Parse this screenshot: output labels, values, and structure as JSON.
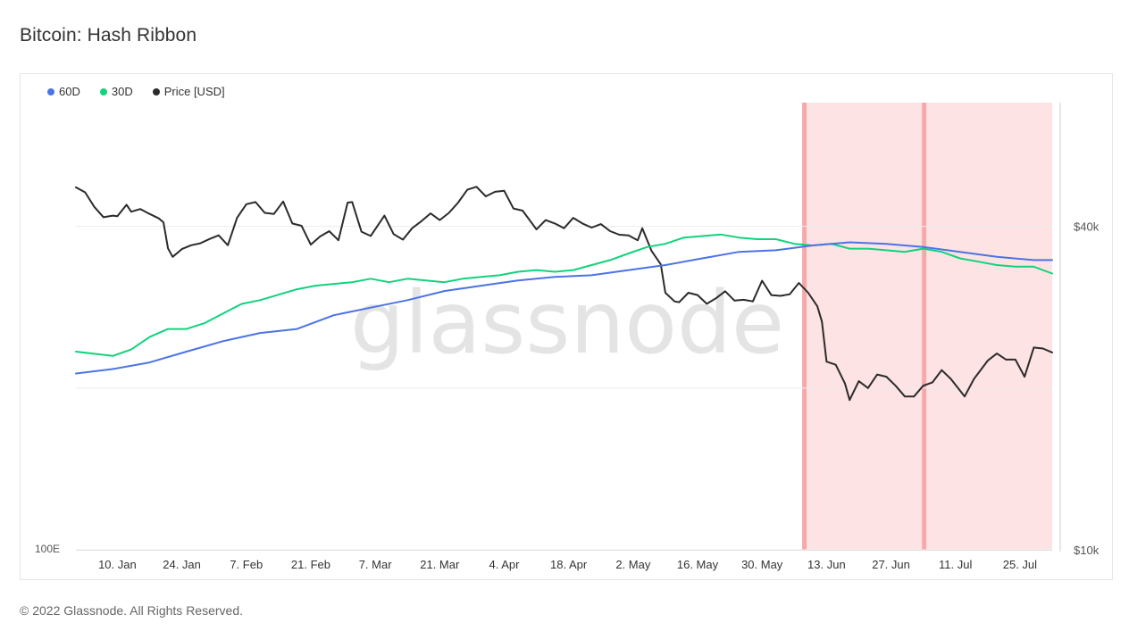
{
  "page": {
    "title": "Bitcoin: Hash Ribbon",
    "watermark": "glassnode",
    "footer": "© 2022 Glassnode. All Rights Reserved."
  },
  "colors": {
    "series_60d": "#4b73e5",
    "series_30d": "#10d37c",
    "series_price": "#2b2b2b",
    "capitulation_band": "#fde3e4",
    "capitulation_edge": "#f6a9ab"
  },
  "chart_data": {
    "type": "line",
    "legend": [
      {
        "name": "60D",
        "color": "#4b73e5"
      },
      {
        "name": "30D",
        "color": "#10d37c"
      },
      {
        "name": "Price [USD]",
        "color": "#2b2b2b"
      }
    ],
    "x_range": [
      "2022-01-01",
      "2022-08-01"
    ],
    "x_ticks": [
      "10. Jan",
      "24. Jan",
      "7. Feb",
      "21. Feb",
      "7. Mar",
      "21. Mar",
      "4. Apr",
      "18. Apr",
      "2. May",
      "16. May",
      "30. May",
      "13. Jun",
      "27. Jun",
      "11. Jul",
      "25. Jul"
    ],
    "x_tick_dates": [
      "2022-01-10",
      "2022-01-24",
      "2022-02-07",
      "2022-02-21",
      "2022-03-07",
      "2022-03-21",
      "2022-04-04",
      "2022-04-18",
      "2022-05-02",
      "2022-05-16",
      "2022-05-30",
      "2022-06-13",
      "2022-06-27",
      "2022-07-11",
      "2022-07-25"
    ],
    "left_axis": {
      "label": "100E",
      "scale": "log"
    },
    "right_axis": {
      "scale": "log",
      "range": [
        10000,
        68000
      ],
      "ticks": [
        {
          "label": "$10k",
          "value": 10000
        },
        {
          "label": "$40k",
          "value": 40000
        }
      ]
    },
    "grid": true,
    "legend_position": "top-left",
    "capitulation_periods": [
      [
        "2022-06-08",
        "2022-07-04"
      ],
      [
        "2022-07-04",
        "2022-08-01"
      ]
    ],
    "series": [
      {
        "name": "Price [USD]",
        "axis": "right",
        "points": [
          [
            "2022-01-01",
            47300
          ],
          [
            "2022-01-03",
            46300
          ],
          [
            "2022-01-05",
            43500
          ],
          [
            "2022-01-07",
            41600
          ],
          [
            "2022-01-09",
            41900
          ],
          [
            "2022-01-10",
            41800
          ],
          [
            "2022-01-12",
            43900
          ],
          [
            "2022-01-13",
            42600
          ],
          [
            "2022-01-15",
            43100
          ],
          [
            "2022-01-17",
            42200
          ],
          [
            "2022-01-19",
            41400
          ],
          [
            "2022-01-20",
            40700
          ],
          [
            "2022-01-21",
            36400
          ],
          [
            "2022-01-22",
            35100
          ],
          [
            "2022-01-24",
            36300
          ],
          [
            "2022-01-26",
            36900
          ],
          [
            "2022-01-28",
            37200
          ],
          [
            "2022-01-30",
            37900
          ],
          [
            "2022-02-01",
            38500
          ],
          [
            "2022-02-03",
            36900
          ],
          [
            "2022-02-05",
            41500
          ],
          [
            "2022-02-07",
            44000
          ],
          [
            "2022-02-09",
            44400
          ],
          [
            "2022-02-11",
            42400
          ],
          [
            "2022-02-13",
            42200
          ],
          [
            "2022-02-15",
            44500
          ],
          [
            "2022-02-17",
            40500
          ],
          [
            "2022-02-19",
            40100
          ],
          [
            "2022-02-21",
            37000
          ],
          [
            "2022-02-23",
            38300
          ],
          [
            "2022-02-25",
            39200
          ],
          [
            "2022-02-27",
            37700
          ],
          [
            "2022-03-01",
            44300
          ],
          [
            "2022-03-02",
            44400
          ],
          [
            "2022-03-04",
            39100
          ],
          [
            "2022-03-06",
            38400
          ],
          [
            "2022-03-09",
            41900
          ],
          [
            "2022-03-11",
            38700
          ],
          [
            "2022-03-13",
            37800
          ],
          [
            "2022-03-15",
            39700
          ],
          [
            "2022-03-17",
            40900
          ],
          [
            "2022-03-19",
            42300
          ],
          [
            "2022-03-21",
            41100
          ],
          [
            "2022-03-23",
            42400
          ],
          [
            "2022-03-25",
            44300
          ],
          [
            "2022-03-27",
            46800
          ],
          [
            "2022-03-29",
            47400
          ],
          [
            "2022-03-31",
            45500
          ],
          [
            "2022-04-02",
            46400
          ],
          [
            "2022-04-04",
            46600
          ],
          [
            "2022-04-06",
            43200
          ],
          [
            "2022-04-08",
            42800
          ],
          [
            "2022-04-11",
            39500
          ],
          [
            "2022-04-13",
            41100
          ],
          [
            "2022-04-15",
            40500
          ],
          [
            "2022-04-17",
            39700
          ],
          [
            "2022-04-19",
            41500
          ],
          [
            "2022-04-21",
            40500
          ],
          [
            "2022-04-23",
            39800
          ],
          [
            "2022-04-25",
            40400
          ],
          [
            "2022-04-27",
            39200
          ],
          [
            "2022-04-29",
            38600
          ],
          [
            "2022-05-01",
            38500
          ],
          [
            "2022-05-03",
            37700
          ],
          [
            "2022-05-04",
            39700
          ],
          [
            "2022-05-06",
            36000
          ],
          [
            "2022-05-08",
            34000
          ],
          [
            "2022-05-09",
            30100
          ],
          [
            "2022-05-11",
            29000
          ],
          [
            "2022-05-12",
            28900
          ],
          [
            "2022-05-14",
            30100
          ],
          [
            "2022-05-16",
            29800
          ],
          [
            "2022-05-18",
            28700
          ],
          [
            "2022-05-20",
            29400
          ],
          [
            "2022-05-22",
            30300
          ],
          [
            "2022-05-24",
            29100
          ],
          [
            "2022-05-26",
            29200
          ],
          [
            "2022-05-28",
            29000
          ],
          [
            "2022-05-30",
            31700
          ],
          [
            "2022-06-01",
            29800
          ],
          [
            "2022-06-03",
            29700
          ],
          [
            "2022-06-05",
            29900
          ],
          [
            "2022-06-07",
            31400
          ],
          [
            "2022-06-09",
            30100
          ],
          [
            "2022-06-11",
            28400
          ],
          [
            "2022-06-12",
            26600
          ],
          [
            "2022-06-13",
            22400
          ],
          [
            "2022-06-15",
            22100
          ],
          [
            "2022-06-17",
            20400
          ],
          [
            "2022-06-18",
            19000
          ],
          [
            "2022-06-20",
            20600
          ],
          [
            "2022-06-22",
            20000
          ],
          [
            "2022-06-24",
            21200
          ],
          [
            "2022-06-26",
            21000
          ],
          [
            "2022-06-28",
            20200
          ],
          [
            "2022-06-30",
            19300
          ],
          [
            "2022-07-02",
            19300
          ],
          [
            "2022-07-04",
            20200
          ],
          [
            "2022-07-06",
            20500
          ],
          [
            "2022-07-08",
            21600
          ],
          [
            "2022-07-10",
            20800
          ],
          [
            "2022-07-13",
            19300
          ],
          [
            "2022-07-15",
            20800
          ],
          [
            "2022-07-18",
            22500
          ],
          [
            "2022-07-20",
            23200
          ],
          [
            "2022-07-22",
            22600
          ],
          [
            "2022-07-24",
            22600
          ],
          [
            "2022-07-26",
            21000
          ],
          [
            "2022-07-28",
            23800
          ],
          [
            "2022-07-30",
            23700
          ],
          [
            "2022-08-01",
            23300
          ]
        ]
      },
      {
        "name": "30D",
        "axis": "left",
        "points": [
          [
            "2022-01-01",
            1.72
          ],
          [
            "2022-01-05",
            1.71
          ],
          [
            "2022-01-09",
            1.7
          ],
          [
            "2022-01-13",
            1.73
          ],
          [
            "2022-01-17",
            1.79
          ],
          [
            "2022-01-21",
            1.83
          ],
          [
            "2022-01-25",
            1.83
          ],
          [
            "2022-01-29",
            1.86
          ],
          [
            "2022-02-02",
            1.91
          ],
          [
            "2022-02-06",
            1.96
          ],
          [
            "2022-02-10",
            1.98
          ],
          [
            "2022-02-14",
            2.01
          ],
          [
            "2022-02-18",
            2.04
          ],
          [
            "2022-02-22",
            2.06
          ],
          [
            "2022-02-26",
            2.07
          ],
          [
            "2022-03-02",
            2.08
          ],
          [
            "2022-03-06",
            2.1
          ],
          [
            "2022-03-10",
            2.08
          ],
          [
            "2022-03-14",
            2.1
          ],
          [
            "2022-03-18",
            2.09
          ],
          [
            "2022-03-22",
            2.08
          ],
          [
            "2022-03-26",
            2.1
          ],
          [
            "2022-03-30",
            2.11
          ],
          [
            "2022-04-03",
            2.12
          ],
          [
            "2022-04-07",
            2.14
          ],
          [
            "2022-04-11",
            2.15
          ],
          [
            "2022-04-15",
            2.14
          ],
          [
            "2022-04-19",
            2.15
          ],
          [
            "2022-04-23",
            2.18
          ],
          [
            "2022-04-27",
            2.21
          ],
          [
            "2022-05-01",
            2.25
          ],
          [
            "2022-05-05",
            2.29
          ],
          [
            "2022-05-09",
            2.31
          ],
          [
            "2022-05-13",
            2.35
          ],
          [
            "2022-05-17",
            2.36
          ],
          [
            "2022-05-21",
            2.37
          ],
          [
            "2022-05-25",
            2.35
          ],
          [
            "2022-05-29",
            2.34
          ],
          [
            "2022-06-02",
            2.34
          ],
          [
            "2022-06-06",
            2.31
          ],
          [
            "2022-06-10",
            2.3
          ],
          [
            "2022-06-14",
            2.31
          ],
          [
            "2022-06-18",
            2.28
          ],
          [
            "2022-06-22",
            2.28
          ],
          [
            "2022-06-26",
            2.27
          ],
          [
            "2022-06-30",
            2.26
          ],
          [
            "2022-07-04",
            2.28
          ],
          [
            "2022-07-08",
            2.26
          ],
          [
            "2022-07-12",
            2.22
          ],
          [
            "2022-07-16",
            2.2
          ],
          [
            "2022-07-20",
            2.18
          ],
          [
            "2022-07-24",
            2.17
          ],
          [
            "2022-07-28",
            2.17
          ],
          [
            "2022-08-01",
            2.13
          ]
        ]
      },
      {
        "name": "60D",
        "axis": "left",
        "points": [
          [
            "2022-01-01",
            1.62
          ],
          [
            "2022-01-09",
            1.64
          ],
          [
            "2022-01-17",
            1.67
          ],
          [
            "2022-01-25",
            1.72
          ],
          [
            "2022-02-02",
            1.77
          ],
          [
            "2022-02-10",
            1.81
          ],
          [
            "2022-02-18",
            1.83
          ],
          [
            "2022-02-26",
            1.9
          ],
          [
            "2022-03-06",
            1.94
          ],
          [
            "2022-03-14",
            1.98
          ],
          [
            "2022-03-22",
            2.03
          ],
          [
            "2022-03-30",
            2.06
          ],
          [
            "2022-04-07",
            2.09
          ],
          [
            "2022-04-15",
            2.11
          ],
          [
            "2022-04-23",
            2.12
          ],
          [
            "2022-05-01",
            2.15
          ],
          [
            "2022-05-09",
            2.18
          ],
          [
            "2022-05-17",
            2.22
          ],
          [
            "2022-05-25",
            2.26
          ],
          [
            "2022-06-02",
            2.27
          ],
          [
            "2022-06-10",
            2.3
          ],
          [
            "2022-06-18",
            2.32
          ],
          [
            "2022-06-26",
            2.31
          ],
          [
            "2022-07-04",
            2.29
          ],
          [
            "2022-07-12",
            2.26
          ],
          [
            "2022-07-20",
            2.23
          ],
          [
            "2022-07-28",
            2.21
          ],
          [
            "2022-08-01",
            2.21
          ]
        ]
      }
    ]
  }
}
